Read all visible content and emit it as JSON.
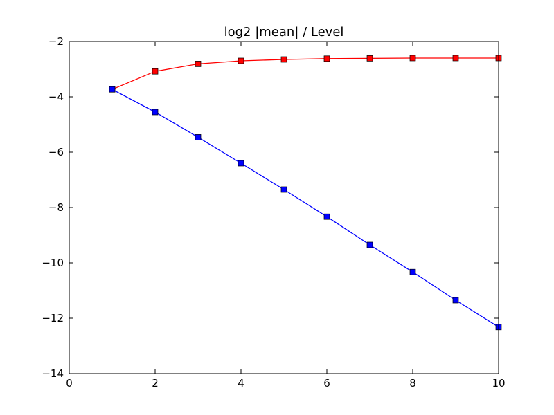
{
  "chart_data": {
    "type": "line",
    "title": "log2 |mean| / Level",
    "xlabel": "",
    "ylabel": "",
    "xlim": [
      0,
      10
    ],
    "ylim": [
      -14,
      -2
    ],
    "x_ticks": [
      0,
      2,
      4,
      6,
      8,
      10
    ],
    "y_ticks": [
      -14,
      -12,
      -10,
      -8,
      -6,
      -4,
      -2
    ],
    "x_tick_labels": [
      "0",
      "2",
      "4",
      "6",
      "8",
      "10"
    ],
    "y_tick_labels": [
      "−14",
      "−12",
      "−10",
      "−8",
      "−6",
      "−4",
      "−2"
    ],
    "grid": false,
    "legend": "none",
    "x": [
      1,
      2,
      3,
      4,
      5,
      6,
      7,
      8,
      9,
      10
    ],
    "series": [
      {
        "color": "#ff0000",
        "marker": "square",
        "values": [
          -3.73,
          -3.08,
          -2.81,
          -2.7,
          -2.65,
          -2.62,
          -2.61,
          -2.6,
          -2.6,
          -2.6
        ]
      },
      {
        "color": "#0000ff",
        "marker": "square",
        "values": [
          -3.73,
          -4.55,
          -5.46,
          -6.4,
          -7.35,
          -8.33,
          -9.35,
          -10.33,
          -11.35,
          -12.32
        ]
      }
    ]
  }
}
